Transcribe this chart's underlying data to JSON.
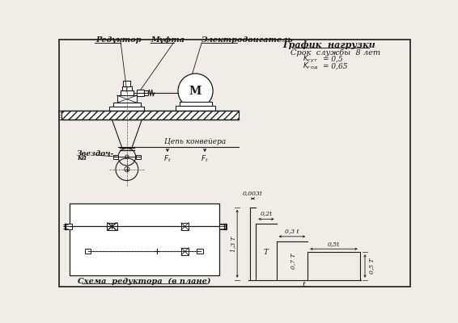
{
  "bg_color": "#f0ede8",
  "line_color": "#1a1a1a",
  "title_graph": "График  нагрузки",
  "text_srok": "Срок  службы  8 лет",
  "label_reduktor": "Редуктор",
  "label_mufta": "Муфта",
  "label_electro": "Электродвигатель",
  "label_zvezdochka_1": "Звездоч-",
  "label_zvezdochka_2": "ка",
  "label_tsep": "Цепь конвейера",
  "label_schema": "Схема  редуктора  (в плане)",
  "label_Ft": "$F_t$",
  "label_M": "М",
  "dim_003t": "0,003t",
  "dim_02t": "0,2t",
  "dim_03t": "0,3 t",
  "dim_05t": "0,5t",
  "dim_13T": "1,3 Т",
  "dim_T": "Т",
  "dim_07T": "0,7 Т",
  "dim_05T": "0,5 Т",
  "dim_t": "t",
  "ksut_label": "$K_{сут}$",
  "ksut_val": "= 0,5",
  "kgod_label": "$K_{год}$",
  "kgod_val": "= 0,65"
}
